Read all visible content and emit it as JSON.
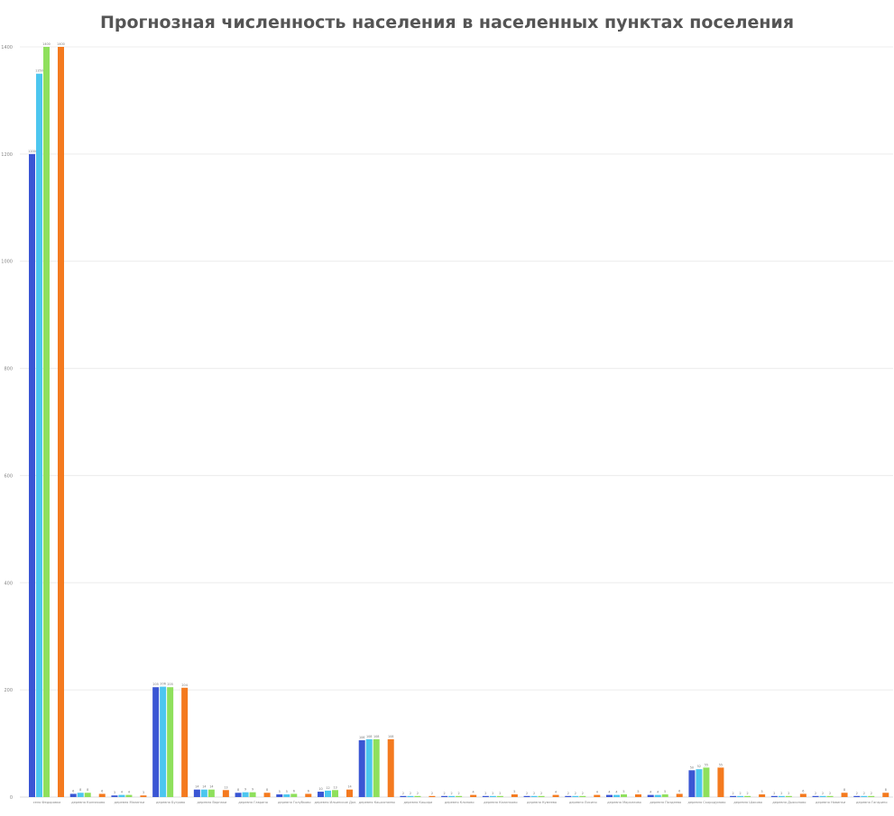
{
  "chart_data": {
    "type": "bar",
    "title": "Прогнозная численность населения в населенных пунктах поселения",
    "ylim": [
      0,
      1400
    ],
    "yticks": [
      0,
      200,
      400,
      600,
      800,
      1000,
      1200,
      1400
    ],
    "grid": true,
    "categories": [
      "село Федоровка",
      "деревня Колпаково",
      "деревня Малинки",
      "деревня Бугрово",
      "деревня Варнаки",
      "деревня Гаврино",
      "деревня Голубково",
      "деревня Ильинское Дол.",
      "деревня Кашхатаево",
      "деревня Кашири",
      "деревня Клопово",
      "деревня Калинково",
      "деревня Кумеево",
      "деревня Лисино",
      "деревня Маркелово",
      "деревня Поздеево",
      "деревня Скородумово",
      "деревня Шаково",
      "деревня Дьяконово",
      "деревня Новинки",
      "деревня Гагарино"
    ],
    "series": [
      {
        "color": "#3a56d4",
        "values": [
          1200,
          6,
          3,
          205,
          14,
          8,
          5,
          10,
          106,
          2,
          2,
          2,
          2,
          2,
          4,
          4,
          50,
          2,
          2,
          2,
          2
        ]
      },
      {
        "color": "#4cc6ef",
        "values": [
          1350,
          8,
          4,
          206,
          14,
          9,
          5,
          12,
          108,
          2,
          2,
          2,
          2,
          2,
          4,
          4,
          52,
          2,
          2,
          2,
          2
        ]
      },
      {
        "color": "#8fe05c",
        "values": [
          1400,
          8,
          4,
          205,
          14,
          9,
          6,
          13,
          108,
          2,
          2,
          2,
          2,
          2,
          5,
          5,
          55,
          2,
          2,
          2,
          2
        ]
      },
      {
        "color": "#f47a1f",
        "values": [
          1400,
          6,
          3,
          204,
          13,
          8,
          6,
          14,
          108,
          2,
          4,
          5,
          4,
          4,
          5,
          6,
          55,
          5,
          6,
          8,
          8
        ]
      }
    ]
  }
}
